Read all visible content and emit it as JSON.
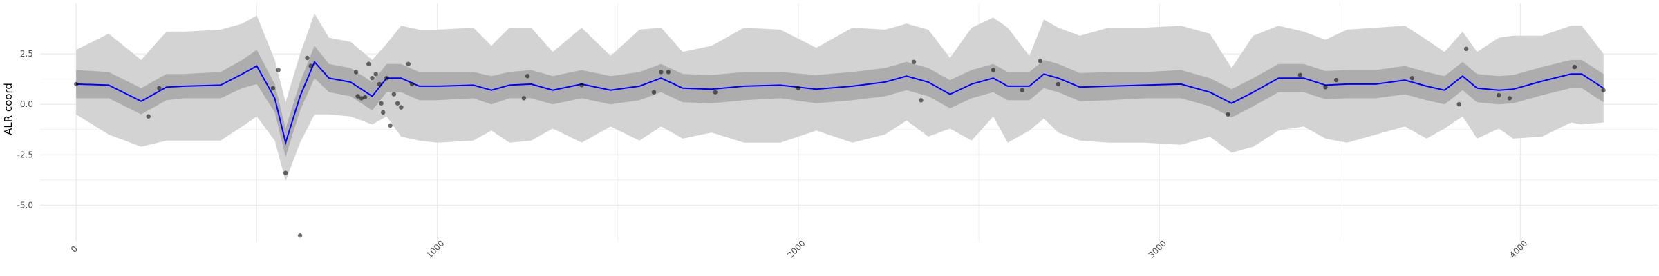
{
  "chart_data": {
    "type": "line",
    "title": "",
    "xlabel": "",
    "ylabel": "ALR coord",
    "xlim": [
      -100,
      4380
    ],
    "ylim": [
      -6.8,
      5.0
    ],
    "grid": true,
    "x_ticks": [
      0,
      1000,
      2000,
      3000,
      4000
    ],
    "x_tick_labels": [
      "0",
      "1000",
      "2000",
      "3000",
      "4000"
    ],
    "y_ticks": [
      2.5,
      0.0,
      -2.5,
      -5.0
    ],
    "y_tick_labels": [
      "2.5",
      "0.0",
      "-2.5",
      "-5.0"
    ],
    "series": [
      {
        "kind": "mean",
        "color": "#0000ff",
        "x": [
          0,
          90,
          180,
          250,
          300,
          400,
          460,
          500,
          550,
          580,
          620,
          660,
          700,
          760,
          820,
          860,
          900,
          950,
          1000,
          1100,
          1150,
          1200,
          1260,
          1320,
          1400,
          1480,
          1560,
          1620,
          1680,
          1760,
          1850,
          1950,
          2050,
          2150,
          2240,
          2300,
          2360,
          2420,
          2480,
          2540,
          2580,
          2640,
          2680,
          2720,
          2780,
          2860,
          2960,
          3060,
          3140,
          3200,
          3260,
          3330,
          3400,
          3460,
          3520,
          3600,
          3680,
          3740,
          3790,
          3840,
          3880,
          3940,
          3980,
          4060,
          4140,
          4170,
          4230
        ],
        "mean": [
          1.0,
          0.95,
          0.15,
          0.85,
          0.9,
          0.95,
          1.5,
          1.9,
          0.3,
          -1.9,
          0.4,
          2.1,
          1.3,
          1.1,
          0.4,
          1.3,
          1.3,
          0.9,
          0.9,
          0.95,
          0.7,
          0.95,
          1.0,
          0.7,
          1.0,
          0.7,
          0.9,
          1.3,
          0.8,
          0.75,
          0.9,
          0.95,
          0.75,
          0.9,
          1.1,
          1.4,
          1.1,
          0.5,
          1.0,
          1.3,
          0.9,
          0.9,
          1.5,
          1.3,
          0.85,
          0.9,
          0.95,
          1.0,
          0.6,
          0.05,
          0.6,
          1.3,
          1.3,
          0.95,
          1.0,
          1.0,
          1.2,
          0.9,
          0.7,
          1.4,
          0.8,
          0.7,
          0.75,
          1.15,
          1.5,
          1.5,
          0.8
        ],
        "inner_lo": [
          0.3,
          0.3,
          -0.5,
          0.2,
          0.3,
          0.3,
          0.8,
          1.0,
          -0.4,
          -2.6,
          -0.3,
          1.3,
          0.6,
          0.4,
          -0.3,
          0.6,
          0.6,
          0.2,
          0.2,
          0.3,
          0.0,
          0.3,
          0.3,
          0.0,
          0.3,
          0.0,
          0.2,
          0.6,
          0.1,
          0.05,
          0.2,
          0.3,
          0.05,
          0.2,
          0.4,
          0.7,
          0.4,
          -0.2,
          0.3,
          0.6,
          0.2,
          0.2,
          0.8,
          0.6,
          0.15,
          0.2,
          0.3,
          0.3,
          -0.1,
          -0.65,
          -0.1,
          0.6,
          0.6,
          0.25,
          0.3,
          0.3,
          0.5,
          0.2,
          0.0,
          0.7,
          0.1,
          0.0,
          0.05,
          0.45,
          0.8,
          0.8,
          0.1
        ],
        "inner_hi": [
          1.7,
          1.6,
          0.8,
          1.5,
          1.5,
          1.6,
          2.2,
          2.7,
          1.0,
          -1.2,
          1.1,
          2.9,
          2.0,
          1.8,
          1.1,
          2.0,
          2.0,
          1.6,
          1.6,
          1.6,
          1.4,
          1.6,
          1.7,
          1.4,
          1.7,
          1.4,
          1.6,
          2.0,
          1.5,
          1.45,
          1.6,
          1.6,
          1.45,
          1.6,
          1.8,
          2.1,
          1.8,
          1.2,
          1.7,
          2.0,
          1.6,
          1.6,
          2.2,
          2.0,
          1.55,
          1.6,
          1.6,
          1.7,
          1.3,
          0.75,
          1.3,
          2.0,
          2.0,
          1.65,
          1.7,
          1.7,
          1.9,
          1.6,
          1.4,
          2.1,
          1.5,
          1.4,
          1.45,
          1.85,
          2.2,
          2.2,
          1.5
        ],
        "outer_lo": [
          -0.5,
          -1.5,
          -2.1,
          -1.8,
          -1.8,
          -1.8,
          -1.1,
          -0.6,
          -1.8,
          -3.8,
          -1.9,
          -0.5,
          -0.5,
          -0.6,
          -1.0,
          -0.6,
          -1.6,
          -1.8,
          -1.9,
          -1.8,
          -1.3,
          -1.9,
          -1.8,
          -1.2,
          -1.9,
          -1.1,
          -1.8,
          -1.1,
          -1.7,
          -1.4,
          -1.9,
          -1.9,
          -1.3,
          -1.9,
          -1.5,
          -0.8,
          -1.6,
          -1.2,
          -1.8,
          -0.6,
          -1.9,
          -1.3,
          -0.7,
          -1.4,
          -1.8,
          -1.9,
          -1.9,
          -2.0,
          -1.6,
          -2.4,
          -2.1,
          -1.3,
          -1.1,
          -1.7,
          -1.9,
          -1.5,
          -1.1,
          -1.7,
          -1.2,
          -0.6,
          -1.7,
          -1.2,
          -1.7,
          -1.6,
          -0.9,
          -1.0,
          -0.9
        ],
        "outer_hi": [
          2.7,
          3.5,
          2.2,
          3.6,
          3.6,
          3.7,
          4.0,
          4.4,
          2.2,
          0.1,
          2.5,
          4.5,
          3.3,
          3.1,
          2.2,
          3.0,
          3.9,
          3.7,
          3.7,
          3.8,
          2.9,
          3.8,
          3.8,
          2.6,
          3.8,
          2.4,
          3.7,
          3.8,
          2.6,
          2.9,
          3.8,
          3.7,
          2.8,
          3.8,
          3.7,
          4.0,
          3.7,
          2.3,
          3.8,
          4.3,
          3.8,
          2.4,
          4.2,
          3.8,
          3.4,
          3.8,
          3.8,
          3.9,
          3.5,
          1.8,
          3.4,
          3.9,
          3.6,
          3.2,
          3.7,
          3.8,
          3.9,
          3.2,
          2.6,
          3.6,
          2.6,
          3.3,
          3.4,
          3.4,
          3.9,
          3.9,
          2.5
        ]
      },
      {
        "kind": "points",
        "color": "#000000",
        "x": [
          0,
          200,
          230,
          545,
          560,
          580,
          620,
          640,
          650,
          775,
          780,
          790,
          800,
          810,
          820,
          830,
          840,
          845,
          850,
          860,
          870,
          880,
          890,
          900,
          920,
          930,
          1240,
          1250,
          1400,
          1600,
          1620,
          1640,
          1770,
          2000,
          2320,
          2340,
          2540,
          2620,
          2670,
          2720,
          3190,
          3390,
          3460,
          3490,
          3700,
          3830,
          3850,
          3940,
          3970,
          4150,
          4230
        ],
        "y": [
          1.0,
          -0.6,
          0.8,
          0.8,
          1.7,
          -3.4,
          -6.5,
          2.3,
          1.9,
          1.6,
          0.4,
          0.3,
          0.35,
          2.0,
          1.3,
          1.5,
          1.0,
          0.05,
          -0.4,
          1.3,
          -1.05,
          0.5,
          0.05,
          -0.15,
          2.0,
          1.0,
          0.3,
          1.4,
          0.95,
          0.6,
          1.6,
          1.6,
          0.6,
          0.8,
          2.1,
          0.2,
          1.7,
          0.7,
          2.15,
          1.0,
          -0.5,
          1.45,
          0.85,
          1.2,
          1.3,
          0.0,
          2.75,
          0.45,
          0.3,
          1.85,
          0.7
        ]
      }
    ]
  },
  "colors": {
    "outer_band": "#d3d3d3",
    "inner_band": "#adadad",
    "mean_line": "#0000ff",
    "points": "#000000",
    "grid": "#ebebeb"
  }
}
